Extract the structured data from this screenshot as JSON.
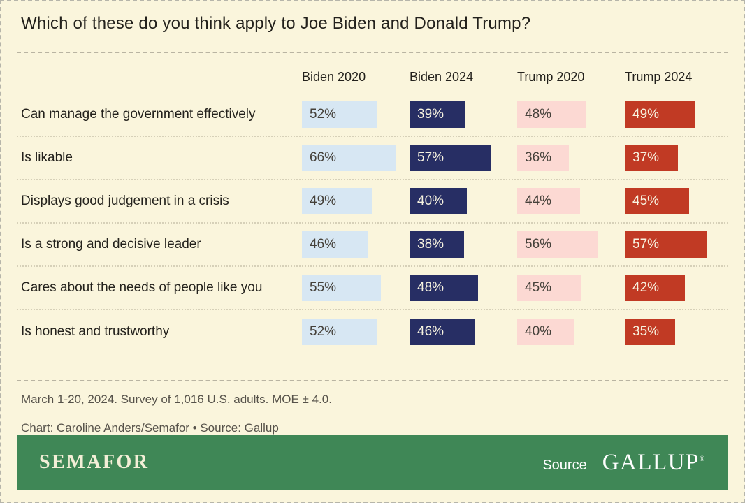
{
  "title": "Which of these do you think apply to Joe Biden and Donald Trump?",
  "chart_data": {
    "type": "bar",
    "title": "Which of these do you think apply to Joe Biden and Donald Trump?",
    "unit": "%",
    "value_range": [
      0,
      100
    ],
    "legend_position": "column headers above bars",
    "grid": "dotted row separators",
    "columns": [
      {
        "label": "Biden 2020",
        "color": "#d7e7f3",
        "text_color": "#45413a"
      },
      {
        "label": "Biden 2024",
        "color": "#272e64",
        "text_color": "#f7f3e0"
      },
      {
        "label": "Trump 2020",
        "color": "#fcd9d3",
        "text_color": "#45413a"
      },
      {
        "label": "Trump 2024",
        "color": "#c13a24",
        "text_color": "#f7f3e0"
      }
    ],
    "rows": [
      {
        "label": "Can manage the government effectively",
        "values": [
          52,
          39,
          48,
          49
        ]
      },
      {
        "label": "Is likable",
        "values": [
          66,
          57,
          36,
          37
        ]
      },
      {
        "label": "Displays good judgement in a crisis",
        "values": [
          49,
          40,
          44,
          45
        ]
      },
      {
        "label": "Is a strong and decisive leader",
        "values": [
          46,
          38,
          56,
          57
        ]
      },
      {
        "label": "Cares about the needs of people like you",
        "values": [
          55,
          48,
          45,
          42
        ]
      },
      {
        "label": "Is honest and trustworthy",
        "values": [
          52,
          46,
          40,
          35
        ]
      }
    ]
  },
  "notes": {
    "methodology": "March 1-20, 2024. Survey of 1,016 U.S. adults. MOE ± 4.0.",
    "credit": "Chart: Caroline Anders/Semafor • Source: Gallup"
  },
  "footer": {
    "brand": "SEMAFOR",
    "source_label": "Source",
    "source_brand": "GALLUP",
    "registered_mark": "®",
    "bar_color": "#3f8756"
  },
  "colors": {
    "background": "#faf5dc",
    "border_dashed": "#b6b5aa",
    "text_primary": "#23211c",
    "text_notes": "#56524a"
  }
}
